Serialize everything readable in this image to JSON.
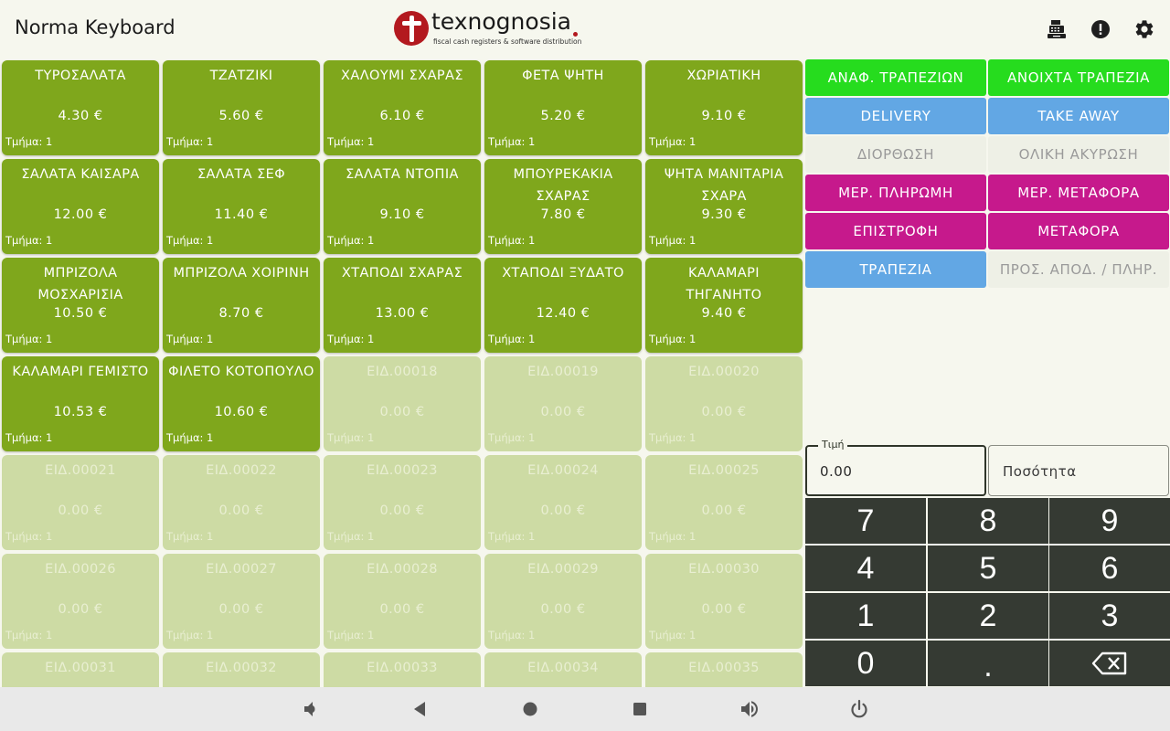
{
  "app": {
    "title": "Norma Keyboard"
  },
  "logo": {
    "wordmark": "texnognosia",
    "tagline": "fiscal cash registers & software distribution"
  },
  "header_icons": [
    "cash-register-icon",
    "alert-icon",
    "settings-icon"
  ],
  "products": [
    {
      "name": "ΤΥΡΟΣΑΛΑΤΑ",
      "price": "4.30 €",
      "dept": "Τμήμα: 1",
      "active": true
    },
    {
      "name": "ΤΖΑΤΖΙΚΙ",
      "price": "5.60 €",
      "dept": "Τμήμα: 1",
      "active": true
    },
    {
      "name": "ΧΑΛΟΥΜΙ ΣΧΑΡΑΣ",
      "price": "6.10 €",
      "dept": "Τμήμα: 1",
      "active": true
    },
    {
      "name": "ΦΕΤΑ ΨΗΤΗ",
      "price": "5.20 €",
      "dept": "Τμήμα: 1",
      "active": true
    },
    {
      "name": "ΧΩΡΙΑΤΙΚΗ",
      "price": "9.10 €",
      "dept": "Τμήμα: 1",
      "active": true
    },
    {
      "name": "ΣΑΛΑΤΑ ΚΑΙΣΑΡΑ",
      "price": "12.00 €",
      "dept": "Τμήμα: 1",
      "active": true
    },
    {
      "name": "ΣΑΛΑΤΑ ΣΕΦ",
      "price": "11.40 €",
      "dept": "Τμήμα: 1",
      "active": true
    },
    {
      "name": "ΣΑΛΑΤΑ ΝΤΟΠΙΑ",
      "price": "9.10 €",
      "dept": "Τμήμα: 1",
      "active": true
    },
    {
      "name": "ΜΠΟΥΡΕΚΑΚΙΑ ΣΧΑΡΑΣ",
      "price": "7.80 €",
      "dept": "Τμήμα: 1",
      "active": true
    },
    {
      "name": "ΨΗΤΑ ΜΑΝΙΤΑΡΙΑ ΣΧΑΡΑ",
      "price": "9.30 €",
      "dept": "Τμήμα: 1",
      "active": true
    },
    {
      "name": "ΜΠΡΙΖΟΛΑ ΜΟΣΧΑΡΙΣΙΑ",
      "price": "10.50 €",
      "dept": "Τμήμα: 1",
      "active": true
    },
    {
      "name": "ΜΠΡΙΖΟΛΑ ΧΟΙΡΙΝΗ",
      "price": "8.70 €",
      "dept": "Τμήμα: 1",
      "active": true
    },
    {
      "name": "ΧΤΑΠΟΔΙ ΣΧΑΡΑΣ",
      "price": "13.00 €",
      "dept": "Τμήμα: 1",
      "active": true
    },
    {
      "name": "ΧΤΑΠΟΔΙ ΞΥΔΑΤΟ",
      "price": "12.40 €",
      "dept": "Τμήμα: 1",
      "active": true
    },
    {
      "name": "ΚΑΛΑΜΑΡΙ ΤΗΓΑΝΗΤΟ",
      "price": "9.40 €",
      "dept": "Τμήμα: 1",
      "active": true
    },
    {
      "name": "ΚΑΛΑΜΑΡΙ ΓΕΜΙΣΤΟ",
      "price": "10.53 €",
      "dept": "Τμήμα: 1",
      "active": true
    },
    {
      "name": "ΦΙΛΕΤΟ ΚΟΤΟΠΟΥΛΟ",
      "price": "10.60 €",
      "dept": "Τμήμα: 1",
      "active": true
    },
    {
      "name": "ΕΙΔ.00018",
      "price": "0.00 €",
      "dept": "Τμήμα: 1",
      "active": false
    },
    {
      "name": "ΕΙΔ.00019",
      "price": "0.00 €",
      "dept": "Τμήμα: 1",
      "active": false
    },
    {
      "name": "ΕΙΔ.00020",
      "price": "0.00 €",
      "dept": "Τμήμα: 1",
      "active": false
    },
    {
      "name": "ΕΙΔ.00021",
      "price": "0.00 €",
      "dept": "Τμήμα: 1",
      "active": false
    },
    {
      "name": "ΕΙΔ.00022",
      "price": "0.00 €",
      "dept": "Τμήμα: 1",
      "active": false
    },
    {
      "name": "ΕΙΔ.00023",
      "price": "0.00 €",
      "dept": "Τμήμα: 1",
      "active": false
    },
    {
      "name": "ΕΙΔ.00024",
      "price": "0.00 €",
      "dept": "Τμήμα: 1",
      "active": false
    },
    {
      "name": "ΕΙΔ.00025",
      "price": "0.00 €",
      "dept": "Τμήμα: 1",
      "active": false
    },
    {
      "name": "ΕΙΔ.00026",
      "price": "0.00 €",
      "dept": "Τμήμα: 1",
      "active": false
    },
    {
      "name": "ΕΙΔ.00027",
      "price": "0.00 €",
      "dept": "Τμήμα: 1",
      "active": false
    },
    {
      "name": "ΕΙΔ.00028",
      "price": "0.00 €",
      "dept": "Τμήμα: 1",
      "active": false
    },
    {
      "name": "ΕΙΔ.00029",
      "price": "0.00 €",
      "dept": "Τμήμα: 1",
      "active": false
    },
    {
      "name": "ΕΙΔ.00030",
      "price": "0.00 €",
      "dept": "Τμήμα: 1",
      "active": false
    },
    {
      "name": "ΕΙΔ.00031",
      "price": "",
      "dept": "",
      "active": false
    },
    {
      "name": "ΕΙΔ.00032",
      "price": "",
      "dept": "",
      "active": false
    },
    {
      "name": "ΕΙΔ.00033",
      "price": "",
      "dept": "",
      "active": false
    },
    {
      "name": "ΕΙΔ.00034",
      "price": "",
      "dept": "",
      "active": false
    },
    {
      "name": "ΕΙΔ.00035",
      "price": "",
      "dept": "",
      "active": false
    }
  ],
  "actions": [
    {
      "label": "ΑΝΑΦ. ΤΡΑΠΕΖΙΩΝ",
      "style": "green",
      "enabled": true
    },
    {
      "label": "ΑΝΟΙΧΤΑ ΤΡΑΠΕΖΙΑ",
      "style": "green",
      "enabled": true
    },
    {
      "label": "DELIVERY",
      "style": "blue",
      "enabled": true
    },
    {
      "label": "TAKE AWAY",
      "style": "blue",
      "enabled": true
    },
    {
      "label": "ΔΙΟΡΘΩΣΗ",
      "style": "disabled",
      "enabled": false
    },
    {
      "label": "ΟΛΙΚΗ ΑΚΥΡΩΣΗ",
      "style": "disabled",
      "enabled": false
    },
    {
      "label": "ΜΕΡ. ΠΛΗΡΩΜΗ",
      "style": "magenta",
      "enabled": true
    },
    {
      "label": "ΜΕΡ. ΜΕΤΑΦΟΡΑ",
      "style": "magenta",
      "enabled": true
    },
    {
      "label": "ΕΠΙΣΤΡΟΦΗ",
      "style": "magenta",
      "enabled": true
    },
    {
      "label": "ΜΕΤΑΦΟΡΑ",
      "style": "magenta",
      "enabled": true
    },
    {
      "label": "ΤΡΑΠΕΖΙΑ",
      "style": "blue",
      "enabled": true
    },
    {
      "label": "ΠΡΟΣ. ΑΠΟΔ. / ΠΛΗΡ.",
      "style": "disabled",
      "enabled": false
    }
  ],
  "price_field": {
    "label": "Τιμή",
    "value": "0.00"
  },
  "quantity_field": {
    "placeholder": "Ποσότητα"
  },
  "keypad": [
    "7",
    "8",
    "9",
    "4",
    "5",
    "6",
    "1",
    "2",
    "3",
    "0",
    ".",
    "⌫"
  ],
  "colors": {
    "tile_active": "#7fa71c",
    "tile_empty": "#cddba4",
    "action_green": "#26dc1e",
    "action_blue": "#62a7e4",
    "action_magenta": "#c6198c",
    "keypad": "#353a33",
    "brand_red": "#b3191f"
  },
  "nav_icons": [
    "volume-down-icon",
    "back-icon",
    "home-icon",
    "recents-icon",
    "volume-up-icon",
    "power-icon"
  ]
}
